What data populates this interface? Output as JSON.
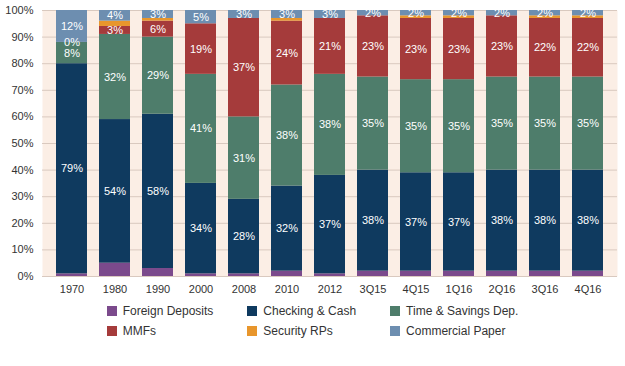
{
  "chart_data": {
    "type": "bar",
    "stacked": true,
    "data_labels": true,
    "grid": true,
    "legend": "bottom",
    "categories": [
      "1970",
      "1980",
      "1990",
      "2000",
      "2008",
      "2010",
      "2012",
      "3Q15",
      "4Q15",
      "1Q16",
      "2Q16",
      "3Q16",
      "4Q16"
    ],
    "ylim": [
      0,
      100
    ],
    "yticks": [
      {
        "value": 0,
        "label": "0%"
      },
      {
        "value": 10,
        "label": "10%"
      },
      {
        "value": 20,
        "label": "20%"
      },
      {
        "value": 30,
        "label": "30%"
      },
      {
        "value": 40,
        "label": "40%"
      },
      {
        "value": 50,
        "label": "50%"
      },
      {
        "value": 60,
        "label": "60%"
      },
      {
        "value": 70,
        "label": "70%"
      },
      {
        "value": 80,
        "label": "80%"
      },
      {
        "value": 90,
        "label": "90%"
      },
      {
        "value": 100,
        "label": "100%"
      }
    ],
    "series": [
      {
        "name": "Foreign Deposits",
        "color": "#7b4a8c",
        "values": [
          1,
          5,
          3,
          1,
          1,
          2,
          1,
          2,
          2,
          2,
          2,
          2,
          2
        ]
      },
      {
        "name": "Checking & Cash",
        "color": "#0f3a5f",
        "values": [
          79,
          54,
          58,
          34,
          28,
          32,
          37,
          38,
          37,
          37,
          38,
          38,
          38
        ],
        "value_labels": [
          "79%",
          "54%",
          "58%",
          "34%",
          "28%",
          "32%",
          "37%",
          "38%",
          "37%",
          "37%",
          "38%",
          "38%",
          "38%"
        ]
      },
      {
        "name": "Time & Savings Dep.",
        "color": "#4e7d6b",
        "values": [
          8,
          32,
          29,
          41,
          31,
          38,
          38,
          35,
          35,
          35,
          35,
          35,
          35
        ],
        "value_labels": [
          "8%",
          "32%",
          "29%",
          "41%",
          "31%",
          "38%",
          "38%",
          "35%",
          "35%",
          "35%",
          "35%",
          "35%",
          "35%"
        ]
      },
      {
        "name": "MMFs",
        "color": "#a53b3b",
        "values": [
          0,
          3,
          6,
          19,
          37,
          24,
          21,
          23,
          23,
          23,
          23,
          22,
          22
        ],
        "value_labels": [
          "0%",
          "3%",
          "6%",
          "19%",
          "37%",
          "24%",
          "21%",
          "23%",
          "23%",
          "23%",
          "23%",
          "22%",
          "22%"
        ]
      },
      {
        "name": "Security RPs",
        "color": "#e8962c",
        "values": [
          0,
          2,
          1,
          0,
          0,
          1,
          0,
          0,
          1,
          1,
          0,
          1,
          1
        ]
      },
      {
        "name": "Commercial Paper",
        "color": "#6d8eb0",
        "values": [
          12,
          4,
          3,
          5,
          3,
          3,
          3,
          2,
          2,
          2,
          2,
          2,
          2
        ],
        "value_labels": [
          "12%",
          "4%",
          "3%",
          "5%",
          "3%",
          "3%",
          "3%",
          "2%",
          "2%",
          "2%",
          "2%",
          "2%",
          "2%"
        ]
      }
    ]
  }
}
